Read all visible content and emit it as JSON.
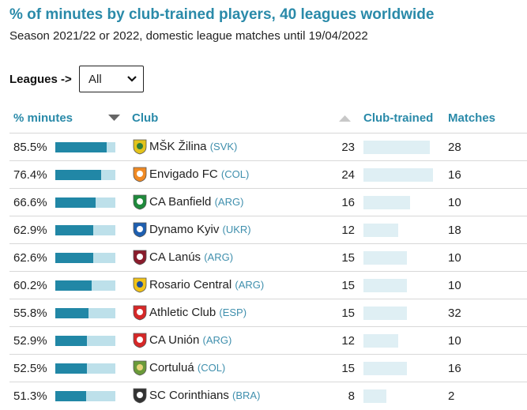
{
  "header": {
    "title": "% of minutes by club-trained players, 40 leagues worldwide",
    "subtitle": "Season 2021/22 or 2022, domestic league matches until 19/04/2022"
  },
  "filter": {
    "label": "Leagues ->",
    "selected": "All",
    "icon": "chevron-down-icon"
  },
  "columns": {
    "pct_minutes": "% minutes",
    "club": "Club",
    "club_trained": "Club-trained",
    "matches": "Matches",
    "sort_icon_pct": "sort-desc-icon",
    "sort_icon_club_trained": "sort-asc-icon"
  },
  "colors": {
    "accent": "#2a8aa9",
    "bar_fill": "#2187a6",
    "bar_track": "#bde0ea",
    "club_trained_bar": "#dfeff4"
  },
  "rows": [
    {
      "pct": "85.5%",
      "value": 85.5,
      "club": "MŠK Žilina",
      "country": "(SVK)",
      "club_trained": "23",
      "ct_value": 23,
      "matches": "28",
      "crest": "zilina-crest-icon",
      "crest_color": "#e3c31b",
      "crest_color2": "#2f7d3a"
    },
    {
      "pct": "76.4%",
      "value": 76.4,
      "club": "Envigado FC",
      "country": "(COL)",
      "club_trained": "24",
      "ct_value": 24,
      "matches": "16",
      "crest": "envigado-crest-icon",
      "crest_color": "#f08a24",
      "crest_color2": "#ffffff"
    },
    {
      "pct": "66.6%",
      "value": 66.6,
      "club": "CA Banfield",
      "country": "(ARG)",
      "club_trained": "16",
      "ct_value": 16,
      "matches": "10",
      "crest": "banfield-crest-icon",
      "crest_color": "#1f8a3c",
      "crest_color2": "#ffffff"
    },
    {
      "pct": "62.9%",
      "value": 62.9,
      "club": "Dynamo Kyiv",
      "country": "(UKR)",
      "club_trained": "12",
      "ct_value": 12,
      "matches": "18",
      "crest": "dynamo-kyiv-crest-icon",
      "crest_color": "#1e5fb0",
      "crest_color2": "#ffffff"
    },
    {
      "pct": "62.6%",
      "value": 62.6,
      "club": "CA Lanús",
      "country": "(ARG)",
      "club_trained": "15",
      "ct_value": 15,
      "matches": "10",
      "crest": "lanus-crest-icon",
      "crest_color": "#8a1c2c",
      "crest_color2": "#ffffff"
    },
    {
      "pct": "60.2%",
      "value": 60.2,
      "club": "Rosario Central",
      "country": "(ARG)",
      "club_trained": "15",
      "ct_value": 15,
      "matches": "10",
      "crest": "rosario-central-crest-icon",
      "crest_color": "#f2c318",
      "crest_color2": "#1b4f9c"
    },
    {
      "pct": "55.8%",
      "value": 55.8,
      "club": "Athletic Club",
      "country": "(ESP)",
      "club_trained": "15",
      "ct_value": 15,
      "matches": "32",
      "crest": "athletic-club-crest-icon",
      "crest_color": "#d62828",
      "crest_color2": "#ffffff"
    },
    {
      "pct": "52.9%",
      "value": 52.9,
      "club": "CA Unión",
      "country": "(ARG)",
      "club_trained": "12",
      "ct_value": 12,
      "matches": "10",
      "crest": "union-crest-icon",
      "crest_color": "#d62828",
      "crest_color2": "#ffffff"
    },
    {
      "pct": "52.5%",
      "value": 52.5,
      "club": "Cortuluá",
      "country": "(COL)",
      "club_trained": "15",
      "ct_value": 15,
      "matches": "16",
      "crest": "cortulua-crest-icon",
      "crest_color": "#6a9a3a",
      "crest_color2": "#e8d27a"
    },
    {
      "pct": "51.3%",
      "value": 51.3,
      "club": "SC Corinthians",
      "country": "(BRA)",
      "club_trained": "8",
      "ct_value": 8,
      "matches": "2",
      "crest": "corinthians-crest-icon",
      "crest_color": "#333333",
      "crest_color2": "#ffffff"
    }
  ]
}
